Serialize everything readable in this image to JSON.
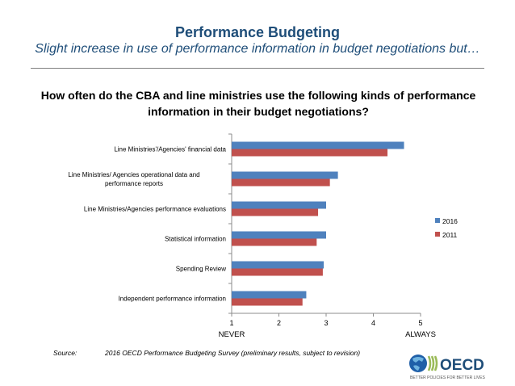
{
  "slide": {
    "title": "Performance Budgeting",
    "subtitle": "Slight increase in use of performance information in budget negotiations but…",
    "question": "How often do the CBA and line ministries use the following kinds of performance information in their budget negotiations?"
  },
  "source": {
    "label": "Source:",
    "text": "2016 OECD Performance Budgeting Survey (preliminary results, subject to revision)"
  },
  "logo": {
    "name": "OECD",
    "tagline": "BETTER POLICIES FOR BETTER LIVES"
  },
  "chart_data": {
    "type": "bar",
    "orientation": "horizontal",
    "categories": [
      "Line Ministries'/Agencies' financial data",
      "Line Ministries/ Agencies operational data and performance reports",
      "Line Ministries/Agencies performance evaluations",
      "Statistical information",
      "Spending Review",
      "Independent performance information"
    ],
    "series": [
      {
        "name": "2016",
        "color": "#4f81bd",
        "values": [
          4.65,
          3.25,
          3.0,
          3.0,
          2.95,
          2.58
        ]
      },
      {
        "name": "2011",
        "color": "#c0504d",
        "values": [
          4.3,
          3.08,
          2.83,
          2.8,
          2.93,
          2.5
        ]
      }
    ],
    "xlim": [
      1,
      5
    ],
    "xticks": [
      "1",
      "2",
      "3",
      "4",
      "5"
    ],
    "x_left_label": "NEVER",
    "x_right_label": "ALWAYS",
    "legend_position": "right",
    "grid": false
  }
}
